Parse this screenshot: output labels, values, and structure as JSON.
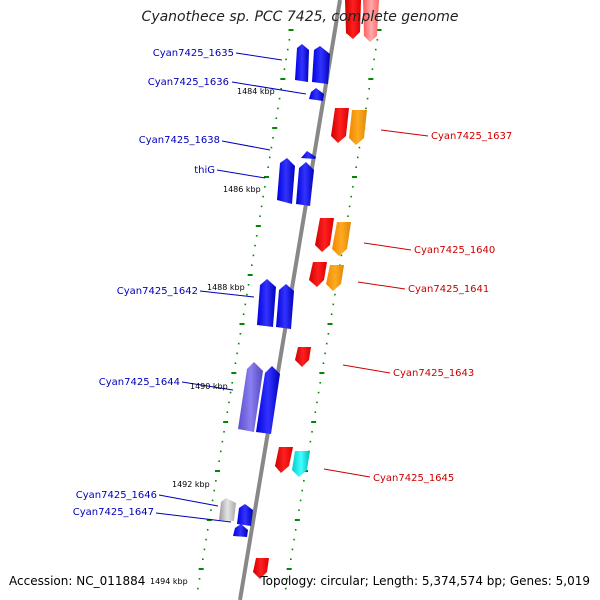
{
  "title": "Cyanothece sp. PCC 7425, complete genome",
  "accession": "Accession: NC_011884",
  "topology": "Topology: circular; Length: 5,374,574 bp; Genes: 5,019",
  "colors": {
    "minus_label": "#0000bb",
    "plus_label": "#cc0000",
    "backbone": "#888888",
    "tick": "#008800"
  },
  "kbp_labels": [
    "1484 kbp",
    "1486 kbp",
    "1488 kbp",
    "1490 kbp",
    "1492 kbp",
    "1494 kbp"
  ],
  "minus_genes": [
    "Cyan7425_1635",
    "Cyan7425_1636",
    "Cyan7425_1638",
    "thiG",
    "Cyan7425_1642",
    "Cyan7425_1644",
    "Cyan7425_1646",
    "Cyan7425_1647"
  ],
  "plus_genes": [
    "Cyan7425_1637",
    "Cyan7425_1640",
    "Cyan7425_1641",
    "Cyan7425_1643",
    "Cyan7425_1645"
  ]
}
